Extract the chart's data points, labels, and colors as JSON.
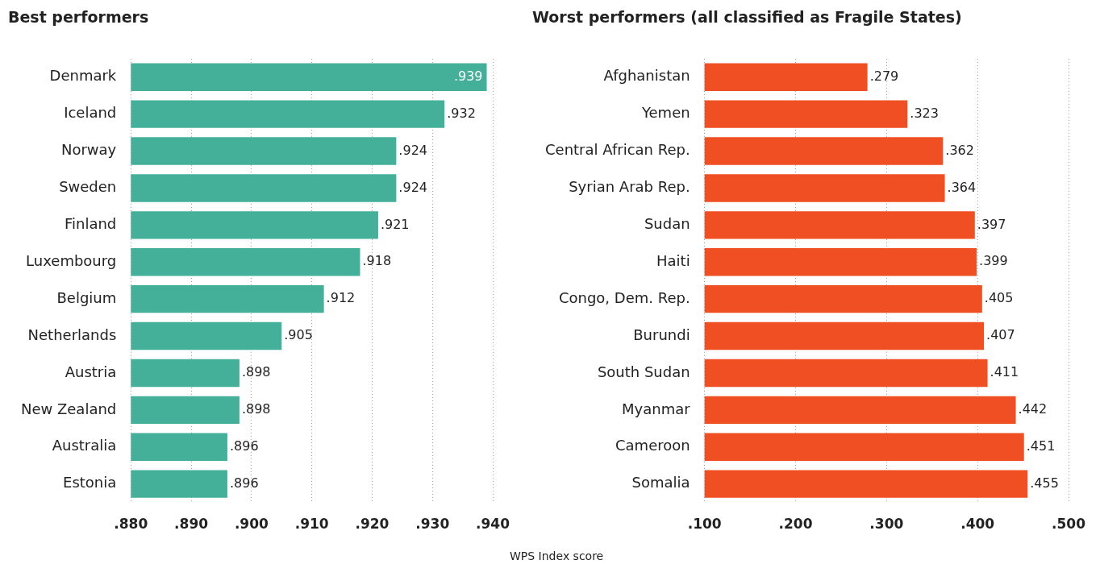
{
  "chart_data": [
    {
      "type": "bar",
      "title": "Best performers",
      "orientation": "horizontal",
      "xlabel": "WPS Index score",
      "categories": [
        "Denmark",
        "Iceland",
        "Norway",
        "Sweden",
        "Finland",
        "Luxembourg",
        "Belgium",
        "Netherlands",
        "Austria",
        "New Zealand",
        "Australia",
        "Estonia"
      ],
      "values": [
        0.939,
        0.932,
        0.924,
        0.924,
        0.921,
        0.918,
        0.912,
        0.905,
        0.898,
        0.898,
        0.896,
        0.896
      ],
      "value_labels": [
        ".939",
        ".932",
        ".924",
        ".924",
        ".921",
        ".918",
        ".912",
        ".905",
        ".898",
        ".898",
        ".896",
        ".896"
      ],
      "color": "#45b09a",
      "xlim": [
        0.88,
        0.94
      ],
      "xticks": [
        {
          "value": 0.88,
          "label": ".880"
        },
        {
          "value": 0.89,
          "label": ".890"
        },
        {
          "value": 0.9,
          "label": ".900"
        },
        {
          "value": 0.91,
          "label": ".910"
        },
        {
          "value": 0.92,
          "label": ".920"
        },
        {
          "value": 0.93,
          "label": ".930"
        },
        {
          "value": 0.94,
          "label": ".940"
        }
      ],
      "grid": "x"
    },
    {
      "type": "bar",
      "title": "Worst performers (all classified as Fragile States)",
      "orientation": "horizontal",
      "categories": [
        "Afghanistan",
        "Yemen",
        "Central African Rep.",
        "Syrian Arab Rep.",
        "Sudan",
        "Haiti",
        "Congo, Dem. Rep.",
        "Burundi",
        "South Sudan",
        "Myanmar",
        "Cameroon",
        "Somalia"
      ],
      "values": [
        0.279,
        0.323,
        0.362,
        0.364,
        0.397,
        0.399,
        0.405,
        0.407,
        0.411,
        0.442,
        0.451,
        0.455
      ],
      "value_labels": [
        ".279",
        ".323",
        ".362",
        ".364",
        ".397",
        ".399",
        ".405",
        ".407",
        ".411",
        ".442",
        ".451",
        ".455"
      ],
      "color": "#f04e23",
      "xlim": [
        0.1,
        0.5
      ],
      "xticks": [
        {
          "value": 0.1,
          "label": ".100"
        },
        {
          "value": 0.2,
          "label": ".200"
        },
        {
          "value": 0.3,
          "label": ".300"
        },
        {
          "value": 0.4,
          "label": ".400"
        },
        {
          "value": 0.5,
          "label": ".500"
        }
      ],
      "grid": "x"
    }
  ]
}
